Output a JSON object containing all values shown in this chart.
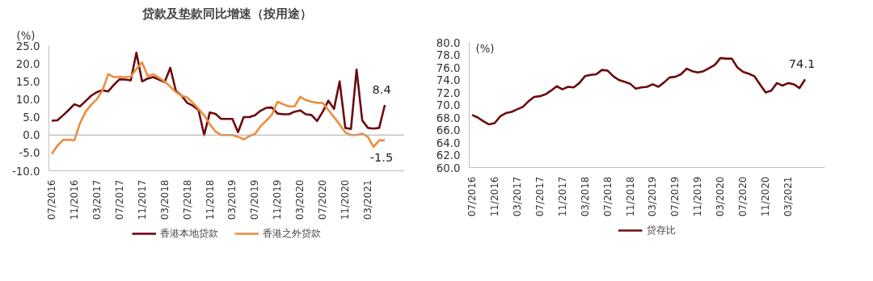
{
  "chart_data": [
    {
      "type": "line",
      "title": "贷款及垫款同比增速（按用途）",
      "ylabel": "(%)",
      "categories": [
        "07/2016",
        null,
        null,
        null,
        "11/2016",
        null,
        null,
        null,
        "03/2017",
        null,
        null,
        null,
        "07/2017",
        null,
        null,
        null,
        "11/2017",
        null,
        null,
        null,
        "03/2018",
        null,
        null,
        null,
        "07/2018",
        null,
        null,
        null,
        "11/2018",
        null,
        null,
        null,
        "03/2019",
        null,
        null,
        null,
        "07/2019",
        null,
        null,
        null,
        "11/2019",
        null,
        null,
        null,
        "03/2020",
        null,
        null,
        null,
        "07/2020",
        null,
        null,
        null,
        "11/2020",
        null,
        null,
        null,
        "03/2021",
        null,
        null,
        null
      ],
      "series": [
        {
          "name": "香港本地贷款",
          "color": "#6b0a0e",
          "values": [
            4.0,
            4.1,
            5.5,
            7.0,
            8.6,
            8.0,
            9.5,
            11.0,
            12.0,
            12.5,
            12.2,
            14.0,
            15.6,
            15.5,
            15.3,
            23.0,
            15.0,
            15.8,
            16.2,
            15.5,
            14.8,
            18.8,
            12.3,
            11.0,
            9.0,
            8.2,
            7.0,
            0.0,
            6.3,
            5.9,
            4.5,
            4.5,
            4.5,
            0.8,
            5.0,
            5.0,
            5.5,
            6.8,
            7.6,
            7.7,
            6.0,
            5.8,
            5.8,
            6.5,
            6.9,
            5.8,
            5.6,
            3.9,
            6.5,
            9.6,
            7.3,
            15.0,
            2.0,
            1.7,
            18.3,
            4.1,
            2.0,
            1.8,
            2.0,
            8.4
          ],
          "value_labels": [
            null,
            null,
            null,
            null,
            null,
            null,
            null,
            null,
            null,
            null,
            null,
            null,
            null,
            null,
            null,
            null,
            null,
            null,
            null,
            null,
            null,
            null,
            null,
            null,
            null,
            null,
            null,
            null,
            null,
            null,
            null,
            null,
            null,
            null,
            null,
            null,
            null,
            null,
            null,
            null,
            null,
            null,
            null,
            null,
            null,
            null,
            null,
            null,
            null,
            null,
            null,
            null,
            null,
            null,
            null,
            null,
            null,
            null,
            null,
            "8.4"
          ]
        },
        {
          "name": "香港之外贷款",
          "color": "#ee8c3e",
          "values": [
            -5.3,
            -3.0,
            -1.4,
            -1.3,
            -1.5,
            3.3,
            6.5,
            8.5,
            10.0,
            12.5,
            17.0,
            16.2,
            16.3,
            16.2,
            16.3,
            18.5,
            20.3,
            16.5,
            17.0,
            16.0,
            15.0,
            13.5,
            12.0,
            11.0,
            10.5,
            9.0,
            7.3,
            5.5,
            3.0,
            1.0,
            0.0,
            0.0,
            0.0,
            -0.5,
            -1.2,
            -0.3,
            0.3,
            2.5,
            4.0,
            5.7,
            9.3,
            8.6,
            8.0,
            8.0,
            10.7,
            9.8,
            9.3,
            9.0,
            9.0,
            7.0,
            5.0,
            3.0,
            0.7,
            0.0,
            0.0,
            0.4,
            -0.5,
            -3.3,
            -1.5,
            -1.5
          ],
          "value_labels": [
            null,
            null,
            null,
            null,
            null,
            null,
            null,
            null,
            null,
            null,
            null,
            null,
            null,
            null,
            null,
            null,
            null,
            null,
            null,
            null,
            null,
            null,
            null,
            null,
            null,
            null,
            null,
            null,
            null,
            null,
            null,
            null,
            null,
            null,
            null,
            null,
            null,
            null,
            null,
            null,
            null,
            null,
            null,
            null,
            null,
            null,
            null,
            null,
            null,
            null,
            null,
            null,
            null,
            null,
            null,
            null,
            null,
            null,
            null,
            "-1.5"
          ]
        }
      ],
      "ylim": [
        -10,
        25
      ],
      "yticks": [
        {
          "value": -10,
          "label": "-10.0"
        },
        {
          "value": -5,
          "label": "-5.0"
        },
        {
          "value": 0,
          "label": "0.0"
        },
        {
          "value": 5,
          "label": "5.0"
        },
        {
          "value": 10,
          "label": "10.0"
        },
        {
          "value": 15,
          "label": "15.0"
        },
        {
          "value": 20,
          "label": "20.0"
        },
        {
          "value": 25,
          "label": "25.0"
        }
      ],
      "ref_lines": [
        {
          "axis": "y",
          "value": 0,
          "color": "#a6a6a6"
        }
      ],
      "grid": false,
      "legend": "bottom"
    },
    {
      "type": "line",
      "ylabel": "(%)",
      "categories": [
        "07/2016",
        null,
        null,
        null,
        "11/2016",
        null,
        null,
        null,
        "03/2017",
        null,
        null,
        null,
        "07/2017",
        null,
        null,
        null,
        "11/2017",
        null,
        null,
        null,
        "03/2018",
        null,
        null,
        null,
        "07/2018",
        null,
        null,
        null,
        "11/2018",
        null,
        null,
        null,
        "03/2019",
        null,
        null,
        null,
        "07/2019",
        null,
        null,
        null,
        "11/2019",
        null,
        null,
        null,
        "03/2020",
        null,
        null,
        null,
        "07/2020",
        null,
        null,
        null,
        "11/2020",
        null,
        null,
        null,
        "03/2021",
        null,
        null,
        null
      ],
      "series": [
        {
          "name": "贷存比",
          "color": "#6b0a0e",
          "values": [
            68.4,
            68.0,
            67.4,
            66.9,
            67.1,
            68.2,
            68.7,
            68.9,
            69.3,
            69.7,
            70.6,
            71.3,
            71.4,
            71.7,
            72.3,
            73.0,
            72.5,
            72.9,
            72.8,
            73.5,
            74.6,
            74.8,
            74.9,
            75.6,
            75.5,
            74.6,
            74.0,
            73.7,
            73.4,
            72.6,
            72.8,
            72.9,
            73.3,
            72.9,
            73.6,
            74.4,
            74.5,
            74.9,
            75.8,
            75.4,
            75.2,
            75.4,
            75.9,
            76.4,
            77.5,
            77.4,
            77.4,
            76.0,
            75.3,
            75.0,
            74.6,
            73.3,
            72.0,
            72.3,
            73.5,
            73.1,
            73.5,
            73.3,
            72.7,
            74.1
          ],
          "value_labels": [
            null,
            null,
            null,
            null,
            null,
            null,
            null,
            null,
            null,
            null,
            null,
            null,
            null,
            null,
            null,
            null,
            null,
            null,
            null,
            null,
            null,
            null,
            null,
            null,
            null,
            null,
            null,
            null,
            null,
            null,
            null,
            null,
            null,
            null,
            null,
            null,
            null,
            null,
            null,
            null,
            null,
            null,
            null,
            null,
            null,
            null,
            null,
            null,
            null,
            null,
            null,
            null,
            null,
            null,
            null,
            null,
            null,
            null,
            null,
            "74.1"
          ]
        }
      ],
      "ylim": [
        60,
        80
      ],
      "yticks": [
        {
          "value": 60,
          "label": "60.0"
        },
        {
          "value": 62,
          "label": "62.0"
        },
        {
          "value": 64,
          "label": "64.0"
        },
        {
          "value": 66,
          "label": "66.0"
        },
        {
          "value": 68,
          "label": "68.0"
        },
        {
          "value": 70,
          "label": "70.0"
        },
        {
          "value": 72,
          "label": "72.0"
        },
        {
          "value": 74,
          "label": "74.0"
        },
        {
          "value": 76,
          "label": "76.0"
        },
        {
          "value": 78,
          "label": "78.0"
        },
        {
          "value": 80,
          "label": "80.0"
        }
      ],
      "grid": false,
      "legend": "bottom"
    }
  ]
}
